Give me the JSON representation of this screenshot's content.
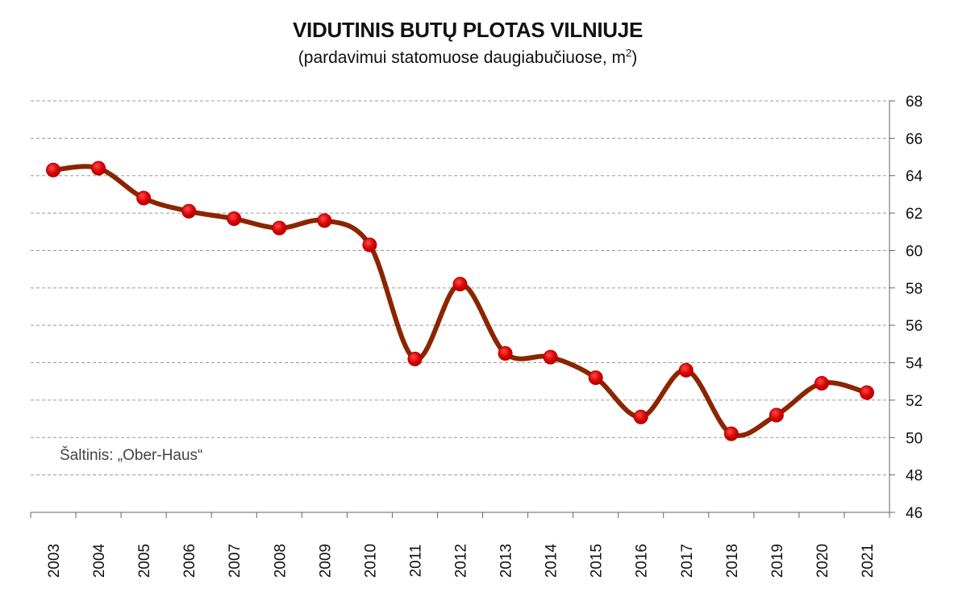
{
  "header": {
    "title": "VIDUTINIS BUTŲ PLOTAS VILNIUJE",
    "subtitle_main": "(pardavimui statomuose daugiabučiuose, m",
    "subtitle_sup": "2",
    "subtitle_end": ")"
  },
  "source_note": "Šaltinis: „Ober-Haus“",
  "chart_data": {
    "type": "line",
    "title": "VIDUTINIS BUTŲ PLOTAS VILNIUJE",
    "subtitle": "(pardavimui statomuose daugiabučiuose, m2)",
    "xlabel": "",
    "ylabel": "",
    "categories": [
      "2003",
      "2004",
      "2005",
      "2006",
      "2007",
      "2008",
      "2009",
      "2010",
      "2011",
      "2012",
      "2013",
      "2014",
      "2015",
      "2016",
      "2017",
      "2018",
      "2019",
      "2020",
      "2021"
    ],
    "series": [
      {
        "values": [
          64.3,
          64.4,
          62.8,
          62.1,
          61.7,
          61.2,
          61.6,
          60.3,
          54.2,
          58.2,
          54.5,
          54.3,
          53.2,
          51.1,
          53.6,
          50.2,
          51.2,
          52.9,
          52.4
        ]
      }
    ],
    "ylim": [
      46,
      68
    ],
    "yticks": [
      46,
      48,
      50,
      52,
      54,
      56,
      58,
      60,
      62,
      64,
      66,
      68
    ],
    "y_axis_side": "right",
    "grid": true,
    "line_color": "#8B2500",
    "marker_color": "#D90000"
  }
}
